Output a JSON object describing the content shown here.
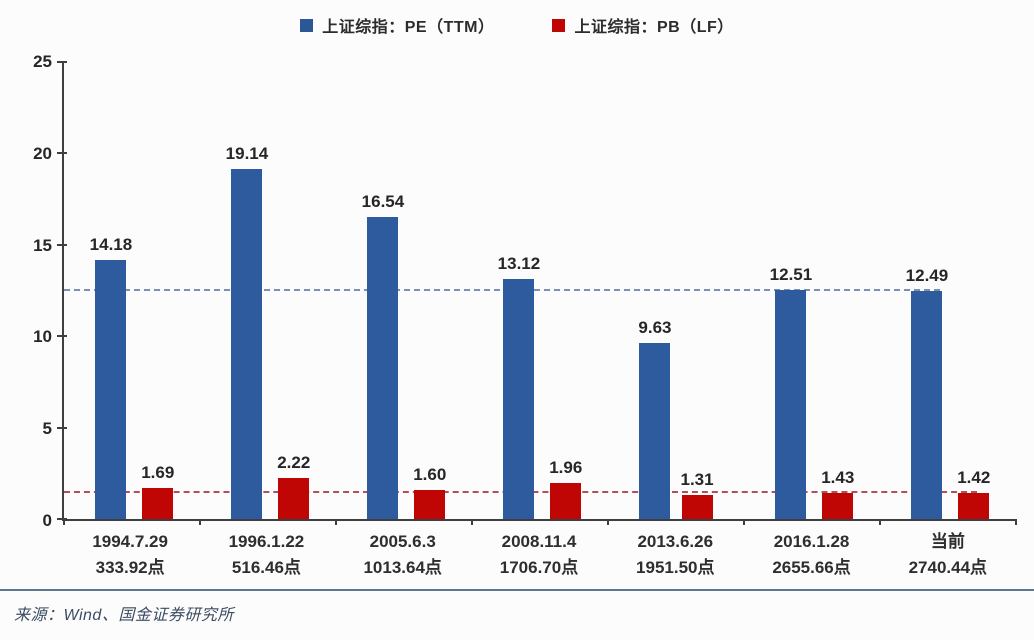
{
  "legend": {
    "items": [
      {
        "label": "上证综指：PE（TTM）",
        "color": "#2b5797"
      },
      {
        "label": "上证综指：PB（LF）",
        "color": "#c00505"
      }
    ]
  },
  "chart_data": {
    "type": "bar",
    "title": "",
    "xlabel": "",
    "ylabel": "",
    "ylim": [
      0,
      25
    ],
    "yticks": [
      0,
      5,
      10,
      15,
      20,
      25
    ],
    "grid": false,
    "legend_position": "top",
    "categories": [
      "1994.7.29",
      "1996.1.22",
      "2005.6.3",
      "2008.11.4",
      "2013.6.26",
      "2016.1.28",
      "当前"
    ],
    "category_points": [
      "333.92点",
      "516.46点",
      "1013.64点",
      "1706.70点",
      "1951.50点",
      "2655.66点",
      "2740.44点"
    ],
    "series": [
      {
        "name": "上证综指：PE（TTM）",
        "color": "#2e5a9e",
        "values": [
          14.18,
          19.14,
          16.54,
          13.12,
          9.63,
          12.51,
          12.49
        ],
        "labels": [
          "14.18",
          "19.14",
          "16.54",
          "13.12",
          "9.63",
          "12.51",
          "12.49"
        ]
      },
      {
        "name": "上证综指：PB（LF）",
        "color": "#c00505",
        "values": [
          1.69,
          2.22,
          1.6,
          1.96,
          1.31,
          1.43,
          1.42
        ],
        "labels": [
          "1.69",
          "2.22",
          "1.60",
          "1.96",
          "1.31",
          "1.43",
          "1.42"
        ]
      }
    ],
    "reference_lines": [
      {
        "series": "PE",
        "value": 12.45,
        "color": "#7b8fb3",
        "width_pct": 92.0
      },
      {
        "series": "PB",
        "value": 1.42,
        "color": "#b2505a",
        "width_pct": 95.9
      }
    ]
  },
  "footer": {
    "source": "来源：Wind、国金证券研究所"
  }
}
